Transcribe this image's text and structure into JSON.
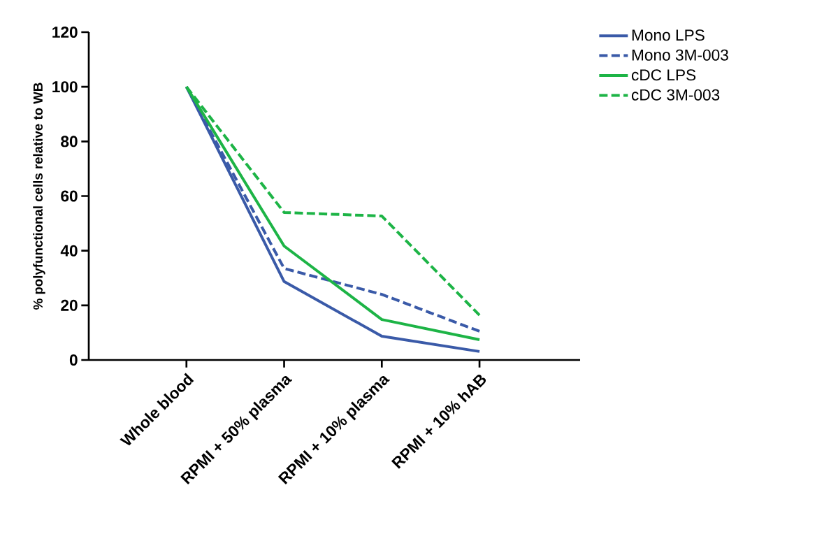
{
  "chart_data": {
    "type": "line",
    "ylabel": "% polyfunctional cells relative to WB",
    "categories": [
      "Whole blood",
      "RPMI + 50% plasma",
      "RPMI + 10% plasma",
      "RPMI + 10% hAB"
    ],
    "ylim": [
      0,
      120
    ],
    "yticks": [
      0,
      20,
      40,
      60,
      80,
      100,
      120
    ],
    "legend": "top right",
    "series": [
      {
        "name": "Mono LPS",
        "color": "#3a5aa8",
        "line_style": "solid",
        "values": [
          100,
          28.7,
          8.7,
          3.1
        ]
      },
      {
        "name": "Mono 3M-003",
        "color": "#3a5aa8",
        "line_style": "dashed",
        "values": [
          100,
          33.5,
          24,
          10.5
        ]
      },
      {
        "name": "cDC LPS",
        "color": "#1db446",
        "line_style": "solid",
        "values": [
          100,
          41.7,
          14.8,
          7.4
        ]
      },
      {
        "name": "cDC 3M-003",
        "color": "#1db446",
        "line_style": "dashed",
        "values": [
          100,
          54,
          52.7,
          16.4
        ]
      }
    ]
  }
}
